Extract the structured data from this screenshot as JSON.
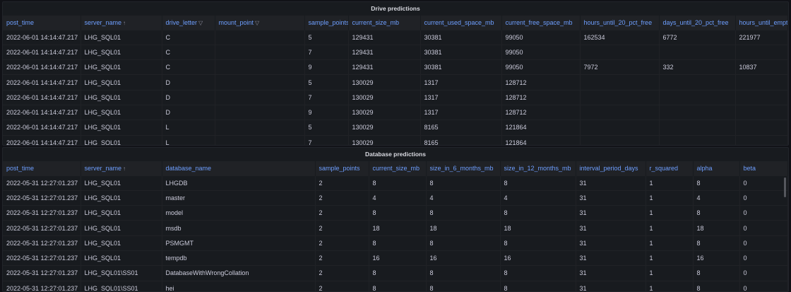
{
  "drive": {
    "title": "Drive predictions",
    "columns": [
      {
        "label": "post_time"
      },
      {
        "label": "server_name",
        "icon": "sort-asc-icon"
      },
      {
        "label": "drive_letter",
        "icon": "filter-icon"
      },
      {
        "label": "mount_point",
        "icon": "filter-icon"
      },
      {
        "label": "sample_points"
      },
      {
        "label": "current_size_mb"
      },
      {
        "label": "current_used_space_mb"
      },
      {
        "label": "current_free_space_mb"
      },
      {
        "label": "hours_until_20_pct_free"
      },
      {
        "label": "days_until_20_pct_free"
      },
      {
        "label": "hours_until_empty"
      }
    ],
    "rows": [
      [
        "2022-06-01 14:14:47.217",
        "LHG_SQL01",
        "C",
        "",
        "5",
        "129431",
        "30381",
        "99050",
        "162534",
        "6772",
        "221977"
      ],
      [
        "2022-06-01 14:14:47.217",
        "LHG_SQL01",
        "C",
        "",
        "7",
        "129431",
        "30381",
        "99050",
        "",
        "",
        ""
      ],
      [
        "2022-06-01 14:14:47.217",
        "LHG_SQL01",
        "C",
        "",
        "9",
        "129431",
        "30381",
        "99050",
        "7972",
        "332",
        "10837"
      ],
      [
        "2022-06-01 14:14:47.217",
        "LHG_SQL01",
        "D",
        "",
        "5",
        "130029",
        "1317",
        "128712",
        "",
        "",
        ""
      ],
      [
        "2022-06-01 14:14:47.217",
        "LHG_SQL01",
        "D",
        "",
        "7",
        "130029",
        "1317",
        "128712",
        "",
        "",
        ""
      ],
      [
        "2022-06-01 14:14:47.217",
        "LHG_SQL01",
        "D",
        "",
        "9",
        "130029",
        "1317",
        "128712",
        "",
        "",
        ""
      ],
      [
        "2022-06-01 14:14:47.217",
        "LHG_SQL01",
        "L",
        "",
        "5",
        "130029",
        "8165",
        "121864",
        "",
        "",
        ""
      ],
      [
        "2022-06-01 14:14:47.217",
        "LHG_SQL01",
        "L",
        "",
        "7",
        "130029",
        "8165",
        "121864",
        "",
        "",
        ""
      ]
    ]
  },
  "database": {
    "title": "Database predictions",
    "columns": [
      {
        "label": "post_time"
      },
      {
        "label": "server_name",
        "icon": "sort-asc-icon"
      },
      {
        "label": "database_name"
      },
      {
        "label": "sample_points"
      },
      {
        "label": "current_size_mb"
      },
      {
        "label": "size_in_6_months_mb"
      },
      {
        "label": "size_in_12_months_mb"
      },
      {
        "label": "interval_period_days"
      },
      {
        "label": "r_squared"
      },
      {
        "label": "alpha"
      },
      {
        "label": "beta"
      }
    ],
    "rows": [
      [
        "2022-05-31 12:27:01.237",
        "LHG_SQL01",
        "LHGDB",
        "2",
        "8",
        "8",
        "8",
        "31",
        "1",
        "8",
        "0"
      ],
      [
        "2022-05-31 12:27:01.237",
        "LHG_SQL01",
        "master",
        "2",
        "4",
        "4",
        "4",
        "31",
        "1",
        "4",
        "0"
      ],
      [
        "2022-05-31 12:27:01.237",
        "LHG_SQL01",
        "model",
        "2",
        "8",
        "8",
        "8",
        "31",
        "1",
        "8",
        "0"
      ],
      [
        "2022-05-31 12:27:01.237",
        "LHG_SQL01",
        "msdb",
        "2",
        "18",
        "18",
        "18",
        "31",
        "1",
        "18",
        "0"
      ],
      [
        "2022-05-31 12:27:01.237",
        "LHG_SQL01",
        "PSMGMT",
        "2",
        "8",
        "8",
        "8",
        "31",
        "1",
        "8",
        "0"
      ],
      [
        "2022-05-31 12:27:01.237",
        "LHG_SQL01",
        "tempdb",
        "2",
        "16",
        "16",
        "16",
        "31",
        "1",
        "16",
        "0"
      ],
      [
        "2022-05-31 12:27:01.237",
        "LHG_SQL01\\SS01",
        "DatabaseWithWrongCollation",
        "2",
        "8",
        "8",
        "8",
        "31",
        "1",
        "8",
        "0"
      ],
      [
        "2022-05-31 12:27:01.237",
        "LHG_SQL01\\SS01",
        "hei",
        "2",
        "8",
        "8",
        "8",
        "31",
        "1",
        "8",
        "0"
      ]
    ]
  }
}
